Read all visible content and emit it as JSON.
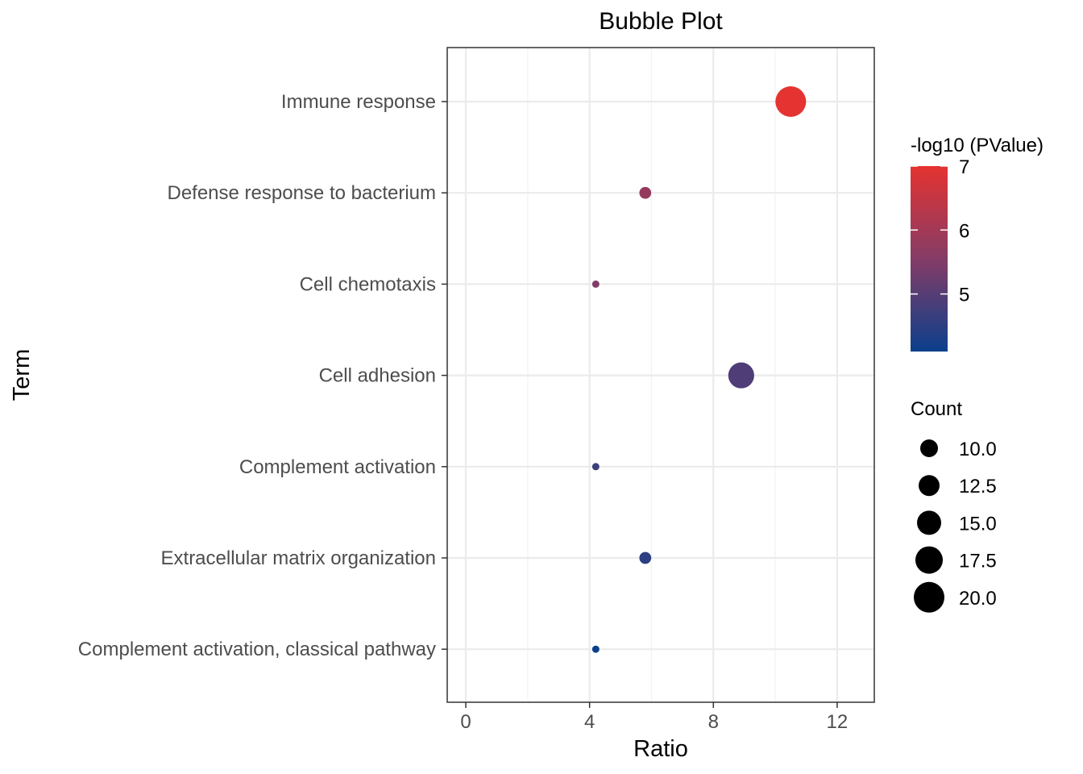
{
  "chart_data": {
    "type": "scatter",
    "title": "Bubble Plot",
    "xlabel": "Ratio",
    "ylabel": "Term",
    "xlim": [
      -0.6,
      13.2
    ],
    "x_ticks": [
      0,
      4,
      8,
      12
    ],
    "x_tick_labels": [
      "0",
      "4",
      "8",
      "12"
    ],
    "grid": true,
    "categories": [
      "Immune response",
      "Defense response to bacterium",
      "Cell chemotaxis",
      "Cell adhesion",
      "Complement activation",
      "Extracellular matrix organization",
      "Complement activation, classical pathway"
    ],
    "points": [
      {
        "term": "Immune response",
        "ratio": 10.5,
        "neg_log10_pvalue": 7.0,
        "count": 20
      },
      {
        "term": "Defense response to bacterium",
        "ratio": 5.8,
        "neg_log10_pvalue": 5.8,
        "count": 11
      },
      {
        "term": "Cell chemotaxis",
        "ratio": 4.2,
        "neg_log10_pvalue": 5.5,
        "count": 8
      },
      {
        "term": "Cell adhesion",
        "ratio": 8.9,
        "neg_log10_pvalue": 4.9,
        "count": 17
      },
      {
        "term": "Complement activation",
        "ratio": 4.2,
        "neg_log10_pvalue": 4.7,
        "count": 8
      },
      {
        "term": "Extracellular matrix organization",
        "ratio": 5.8,
        "neg_log10_pvalue": 4.5,
        "count": 11
      },
      {
        "term": "Complement activation, classical pathway",
        "ratio": 4.2,
        "neg_log10_pvalue": 4.1,
        "count": 8
      }
    ],
    "color_legend": {
      "title": "-log10 (PValue)",
      "range": [
        4.1,
        7.0
      ],
      "ticks": [
        5,
        6,
        7
      ],
      "tick_labels": [
        "5",
        "6",
        "7"
      ],
      "low_color": "#0b3f8c",
      "mid_color": "#853c66",
      "high_color": "#e53331"
    },
    "size_legend": {
      "title": "Count",
      "values": [
        10.0,
        12.5,
        15.0,
        17.5,
        20.0
      ],
      "labels": [
        "10.0",
        "12.5",
        "15.0",
        "17.5",
        "20.0"
      ]
    },
    "legend_position": "right"
  }
}
